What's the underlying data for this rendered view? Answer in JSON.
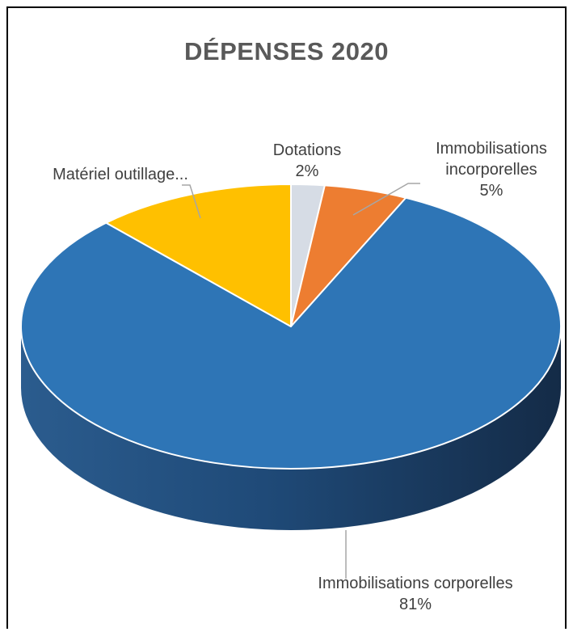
{
  "chart_data": {
    "type": "pie",
    "title": "DÉPENSES 2020",
    "slices": [
      {
        "name": "Dotations",
        "percent": "2%",
        "value": 2,
        "color": "#D6DCE5",
        "name_lines": [
          "Dotations"
        ]
      },
      {
        "name": "Immobilisations incorporelles",
        "percent": "5%",
        "value": 5,
        "color": "#ED7D31",
        "name_lines": [
          "Immobilisations",
          "incorporelles"
        ]
      },
      {
        "name": "Immobilisations corporelles",
        "percent": "81%",
        "value": 81,
        "color": "#2E75B6",
        "name_lines": [
          "Immobilisations corporelles"
        ]
      },
      {
        "name": "Matériel outillage...",
        "percent": "",
        "value": 12,
        "color": "#FFC000",
        "name_lines": [
          "Matériel outillage..."
        ]
      }
    ],
    "style": "3d-pie",
    "legend": "none"
  }
}
